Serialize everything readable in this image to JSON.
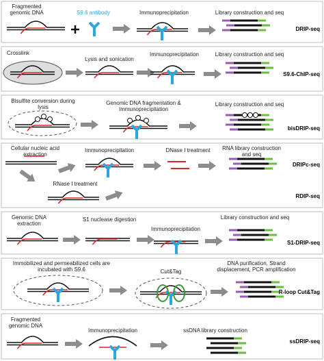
{
  "panels": [
    {
      "steps": [
        "Fragmented genomic DNA",
        "S9.6 antibody",
        "Immunoprecipitation",
        "Library construction and seq"
      ],
      "methods": [
        "DRIP-seq"
      ]
    },
    {
      "steps": [
        "Crosslink",
        "Lysis and sonication",
        "Immunoprecipitation",
        "Library construction and seq"
      ],
      "methods": [
        "S9.6-ChIP-seq"
      ]
    },
    {
      "steps": [
        "Bisulfite conversion during lysis",
        "Genomic DNA fragmentation & Immunoprecipitation",
        "Library construction and seq"
      ],
      "methods": [
        "bisDRIP-seq"
      ]
    },
    {
      "steps": [
        "Cellular nucleic acid extraction",
        "Immunoprecipitation",
        "DNase I treatment",
        "RNA library construction and seq",
        "RNase I treatment"
      ],
      "methods": [
        "DRIPc-seq",
        "RDIP-seq"
      ]
    },
    {
      "steps": [
        "Genomic DNA extraction",
        "S1 nuclease digestion",
        "Immunoprecipitation",
        "Library construction and seq"
      ],
      "methods": [
        "S1-DRIP-seq"
      ]
    },
    {
      "steps": [
        "Immobilized and permeabilized cells are incubated with S9.6",
        "Cut&Tag",
        "DNA purification, Strand displacement, PCR amplification"
      ],
      "methods": [
        "R-loop Cut&Tag"
      ]
    },
    {
      "steps": [
        "Fragmented genomic DNA",
        "Immunoprecipitation",
        "ssDNA library construction"
      ],
      "methods": [
        "ssDRIP-seq"
      ]
    }
  ]
}
